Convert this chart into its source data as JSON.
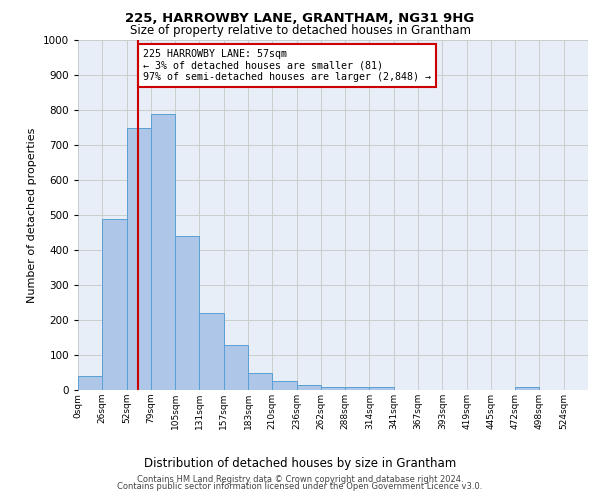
{
  "title1": "225, HARROWBY LANE, GRANTHAM, NG31 9HG",
  "title2": "Size of property relative to detached houses in Grantham",
  "xlabel": "Distribution of detached houses by size in Grantham",
  "ylabel": "Number of detached properties",
  "bin_labels": [
    "0sqm",
    "26sqm",
    "52sqm",
    "79sqm",
    "105sqm",
    "131sqm",
    "157sqm",
    "183sqm",
    "210sqm",
    "236sqm",
    "262sqm",
    "288sqm",
    "314sqm",
    "341sqm",
    "367sqm",
    "393sqm",
    "419sqm",
    "445sqm",
    "472sqm",
    "498sqm",
    "524sqm"
  ],
  "bar_heights": [
    40,
    490,
    750,
    790,
    440,
    220,
    130,
    50,
    25,
    15,
    10,
    8,
    8,
    0,
    0,
    0,
    0,
    0,
    8,
    0,
    0
  ],
  "bar_color": "#aec6e8",
  "bar_edge_color": "#5a9fd4",
  "vline_x": 2.48,
  "vline_color": "#cc0000",
  "annotation_text": "225 HARROWBY LANE: 57sqm\n← 3% of detached houses are smaller (81)\n97% of semi-detached houses are larger (2,848) →",
  "annotation_box_color": "#cc0000",
  "ylim": [
    0,
    1000
  ],
  "yticks": [
    0,
    100,
    200,
    300,
    400,
    500,
    600,
    700,
    800,
    900,
    1000
  ],
  "footer1": "Contains HM Land Registry data © Crown copyright and database right 2024.",
  "footer2": "Contains public sector information licensed under the Open Government Licence v3.0.",
  "grid_color": "#cccccc",
  "plot_bg_color": "#e8eef8"
}
